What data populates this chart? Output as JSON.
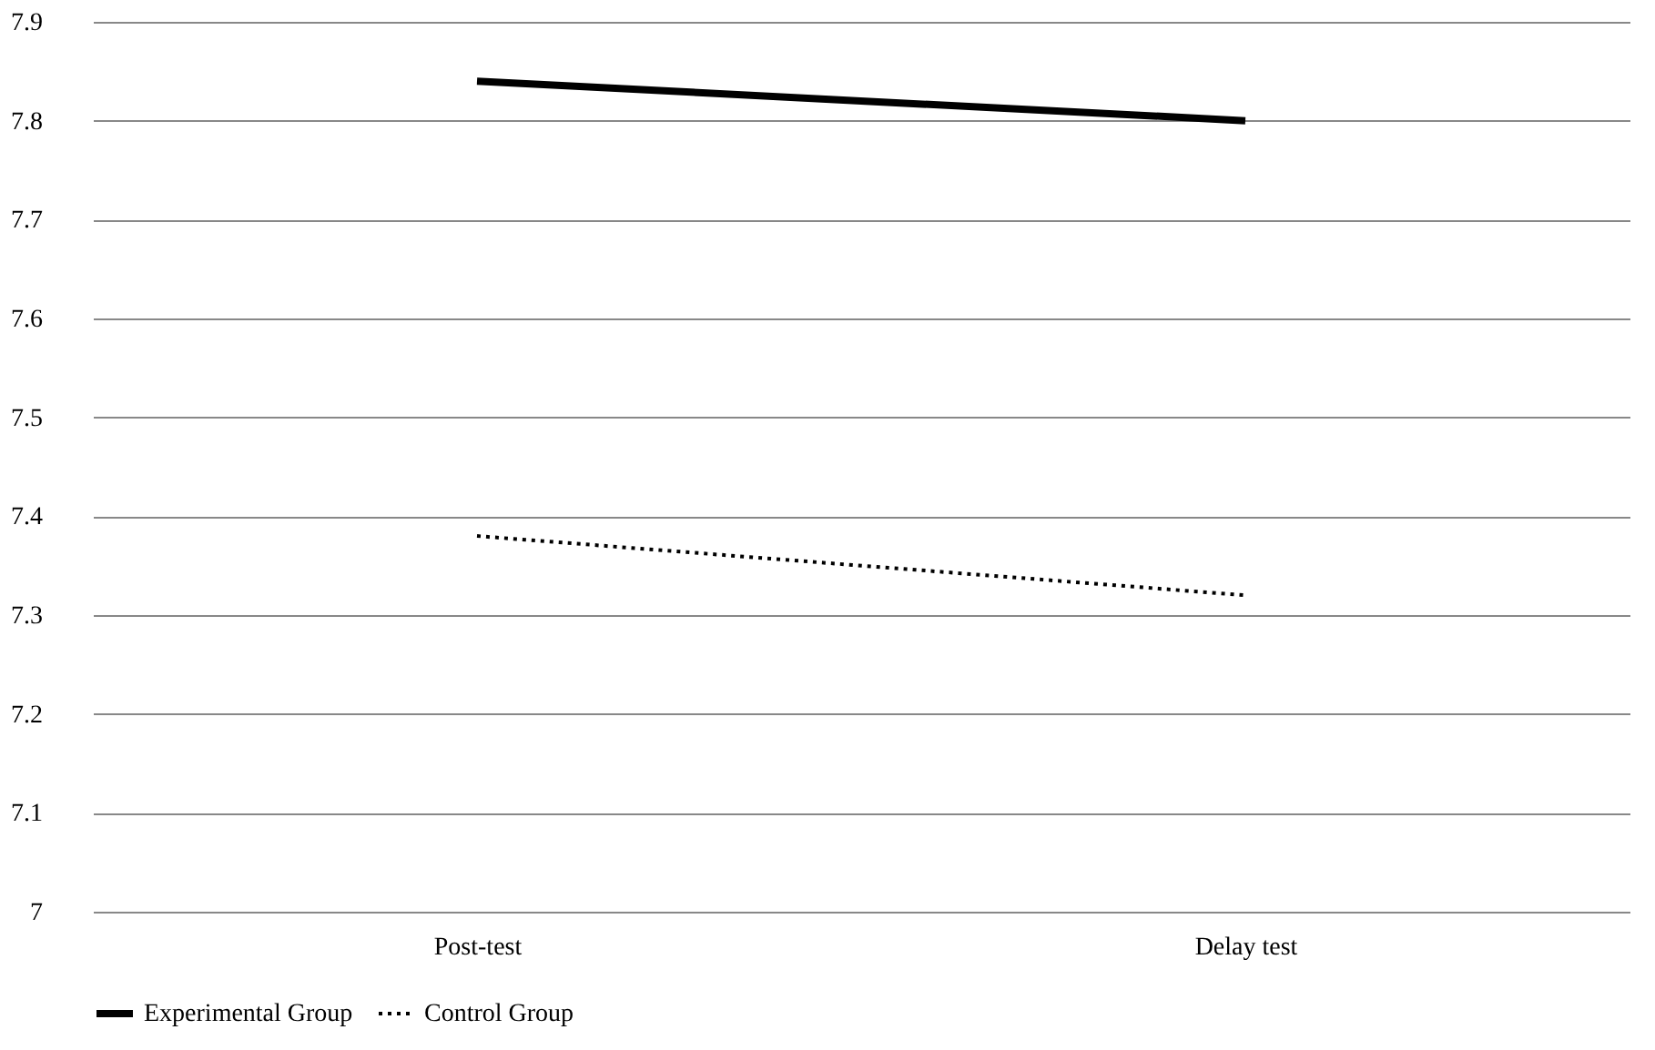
{
  "chart_data": {
    "type": "line",
    "categories": [
      "Post-test",
      "Delay test"
    ],
    "series": [
      {
        "name": "Experimental Group",
        "color": "#000000",
        "line_style": "solid",
        "values": [
          7.84,
          7.8
        ]
      },
      {
        "name": "Control Group",
        "color": "#000000",
        "line_style": "dotted",
        "values": [
          7.38,
          7.32
        ]
      }
    ],
    "ylim": [
      7,
      7.9
    ],
    "yticks": [
      7,
      7.1,
      7.2,
      7.3,
      7.4,
      7.5,
      7.6,
      7.7,
      7.8,
      7.9
    ],
    "grid": "y",
    "legend": "bottom",
    "marker": "none"
  }
}
